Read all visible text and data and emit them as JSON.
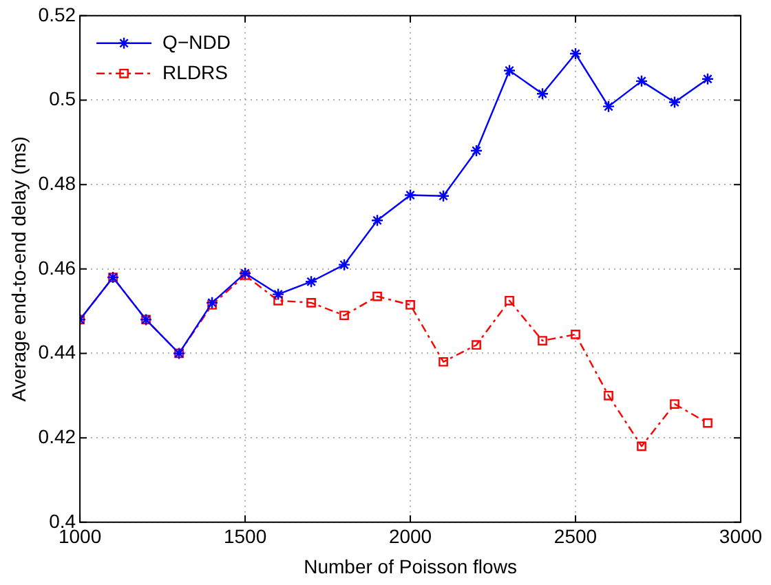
{
  "chart_data": {
    "type": "line",
    "xlabel": "Number of Poisson flows",
    "ylabel": "Average end-to-end delay (ms)",
    "x": [
      1000,
      1100,
      1200,
      1300,
      1400,
      1500,
      1600,
      1700,
      1800,
      1900,
      2000,
      2100,
      2200,
      2300,
      2400,
      2500,
      2600,
      2700,
      2800,
      2900
    ],
    "series": [
      {
        "name": "Q−NDD",
        "color": "#0000ff",
        "marker": "cross",
        "line_style": "solid",
        "values": [
          0.448,
          0.458,
          0.448,
          0.44,
          0.452,
          0.459,
          0.454,
          0.457,
          0.461,
          0.4715,
          0.4775,
          0.4773,
          0.488,
          0.507,
          0.5015,
          0.511,
          0.4985,
          0.5045,
          0.4995,
          0.505
        ]
      },
      {
        "name": "RLDRS",
        "color": "#ff0000",
        "marker": "square",
        "line_style": "dashed",
        "values": [
          0.448,
          0.458,
          0.448,
          0.44,
          0.4515,
          0.4585,
          0.4525,
          0.452,
          0.449,
          0.4535,
          0.4515,
          0.438,
          0.442,
          0.4525,
          0.443,
          0.4445,
          0.43,
          0.418,
          0.428,
          0.4235
        ]
      }
    ],
    "xlim": [
      1000,
      3000
    ],
    "xticks": [
      1000,
      1500,
      2000,
      2500,
      3000
    ],
    "ylim": [
      0.4,
      0.52
    ],
    "yticks": [
      0.4,
      0.42,
      0.44,
      0.46,
      0.48,
      0.5,
      0.52
    ],
    "grid": true,
    "legend": "top left"
  }
}
